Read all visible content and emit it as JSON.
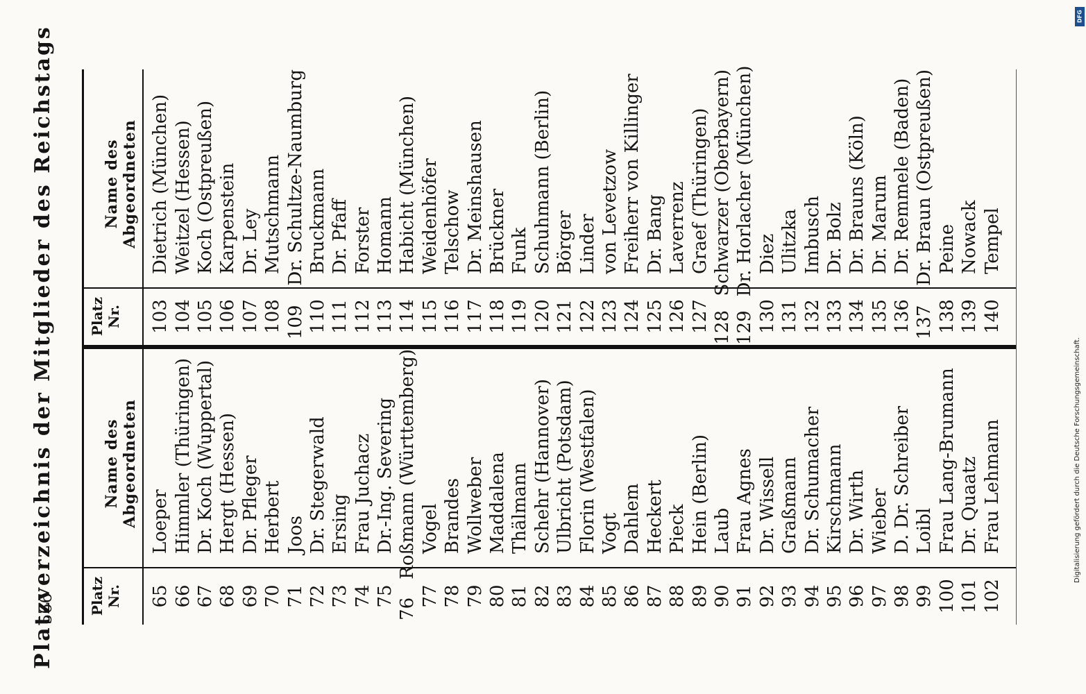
{
  "page_number": "566",
  "title": "Platzverzeichnis der Mitglieder des Reichstags",
  "headers": {
    "number": "Platz Nr.",
    "name": "Name des Abgeordneten"
  },
  "left_column": [
    {
      "num": "65",
      "name": "Loeper"
    },
    {
      "num": "66",
      "name": "Himmler (Thüringen)"
    },
    {
      "num": "67",
      "name": "Dr. Koch (Wuppertal)"
    },
    {
      "num": "68",
      "name": "Hergt (Hessen)"
    },
    {
      "num": "69",
      "name": "Dr. Pfleger"
    },
    {
      "num": "70",
      "name": "Herbert"
    },
    {
      "num": "71",
      "name": "Joos"
    },
    {
      "num": "72",
      "name": "Dr. Stegerwald"
    },
    {
      "num": "73",
      "name": "Ersing"
    },
    {
      "num": "74",
      "name": "Frau Juchacz"
    },
    {
      "num": "75",
      "name": "Dr.-Ing. Severing"
    },
    {
      "num": "76",
      "name": "Roßmann (Württemberg)"
    },
    {
      "num": "77",
      "name": "Vogel"
    },
    {
      "num": "78",
      "name": "Brandes"
    },
    {
      "num": "79",
      "name": "Wollweber"
    },
    {
      "num": "80",
      "name": "Maddalena"
    },
    {
      "num": "81",
      "name": "Thälmann"
    },
    {
      "num": "82",
      "name": "Schehr (Hannover)"
    },
    {
      "num": "83",
      "name": "Ulbricht (Potsdam)"
    },
    {
      "num": "84",
      "name": "Florin (Westfalen)"
    },
    {
      "num": "85",
      "name": "Vogt"
    },
    {
      "num": "86",
      "name": "Dahlem"
    },
    {
      "num": "87",
      "name": "Heckert"
    },
    {
      "num": "88",
      "name": "Pieck"
    },
    {
      "num": "89",
      "name": "Hein (Berlin)"
    },
    {
      "num": "90",
      "name": "Laub"
    },
    {
      "num": "91",
      "name": "Frau Agnes"
    },
    {
      "num": "92",
      "name": "Dr. Wissell"
    },
    {
      "num": "93",
      "name": "Graßmann"
    },
    {
      "num": "94",
      "name": "Dr. Schumacher"
    },
    {
      "num": "95",
      "name": "Kirschmann"
    },
    {
      "num": "96",
      "name": "Dr. Wirth"
    },
    {
      "num": "97",
      "name": "Wieber"
    },
    {
      "num": "98",
      "name": "D. Dr. Schreiber"
    },
    {
      "num": "99",
      "name": "Loibl"
    },
    {
      "num": "100",
      "name": "Frau Lang-Brumann"
    },
    {
      "num": "101",
      "name": "Dr. Quaatz"
    },
    {
      "num": "102",
      "name": "Frau Lehmann"
    }
  ],
  "right_column": [
    {
      "num": "103",
      "name": "Dietrich (München)"
    },
    {
      "num": "104",
      "name": "Weitzel (Hessen)"
    },
    {
      "num": "105",
      "name": "Koch (Ostpreußen)"
    },
    {
      "num": "106",
      "name": "Karpenstein"
    },
    {
      "num": "107",
      "name": "Dr. Ley"
    },
    {
      "num": "108",
      "name": "Mutschmann"
    },
    {
      "num": "109",
      "name": "Dr. Schultze-Naumburg"
    },
    {
      "num": "110",
      "name": "Bruckmann"
    },
    {
      "num": "111",
      "name": "Dr. Pfaff"
    },
    {
      "num": "112",
      "name": "Forster"
    },
    {
      "num": "113",
      "name": "Homann"
    },
    {
      "num": "114",
      "name": "Habicht (München)"
    },
    {
      "num": "115",
      "name": "Weidenhöfer"
    },
    {
      "num": "116",
      "name": "Telschow"
    },
    {
      "num": "117",
      "name": "Dr. Meinshausen"
    },
    {
      "num": "118",
      "name": "Brückner"
    },
    {
      "num": "119",
      "name": "Funk"
    },
    {
      "num": "120",
      "name": "Schuhmann (Berlin)"
    },
    {
      "num": "121",
      "name": "Börger"
    },
    {
      "num": "122",
      "name": "Linder"
    },
    {
      "num": "123",
      "name": "von Levetzow"
    },
    {
      "num": "124",
      "name": "Freiherr von Killinger"
    },
    {
      "num": "125",
      "name": "Dr. Bang"
    },
    {
      "num": "126",
      "name": "Laverrenz"
    },
    {
      "num": "127",
      "name": "Graef (Thüringen)"
    },
    {
      "num": "128",
      "name": "Schwarzer (Oberbayern)"
    },
    {
      "num": "129",
      "name": "Dr. Horlacher (München)"
    },
    {
      "num": "130",
      "name": "Diez"
    },
    {
      "num": "131",
      "name": "Ulitzka"
    },
    {
      "num": "132",
      "name": "Imbusch"
    },
    {
      "num": "133",
      "name": "Dr. Bolz"
    },
    {
      "num": "134",
      "name": "Dr. Brauns (Köln)"
    },
    {
      "num": "135",
      "name": "Dr. Marum"
    },
    {
      "num": "136",
      "name": "Dr. Remmele (Baden)"
    },
    {
      "num": "137",
      "name": "Dr. Braun (Ostpreußen)"
    },
    {
      "num": "138",
      "name": "Peine"
    },
    {
      "num": "139",
      "name": "Nowack"
    },
    {
      "num": "140",
      "name": "Tempel"
    }
  ],
  "dfg_credit": "Digitalisierung gefördert durch die Deutsche Forschungsgemeinschaft.",
  "dfg_logo": "DFG"
}
